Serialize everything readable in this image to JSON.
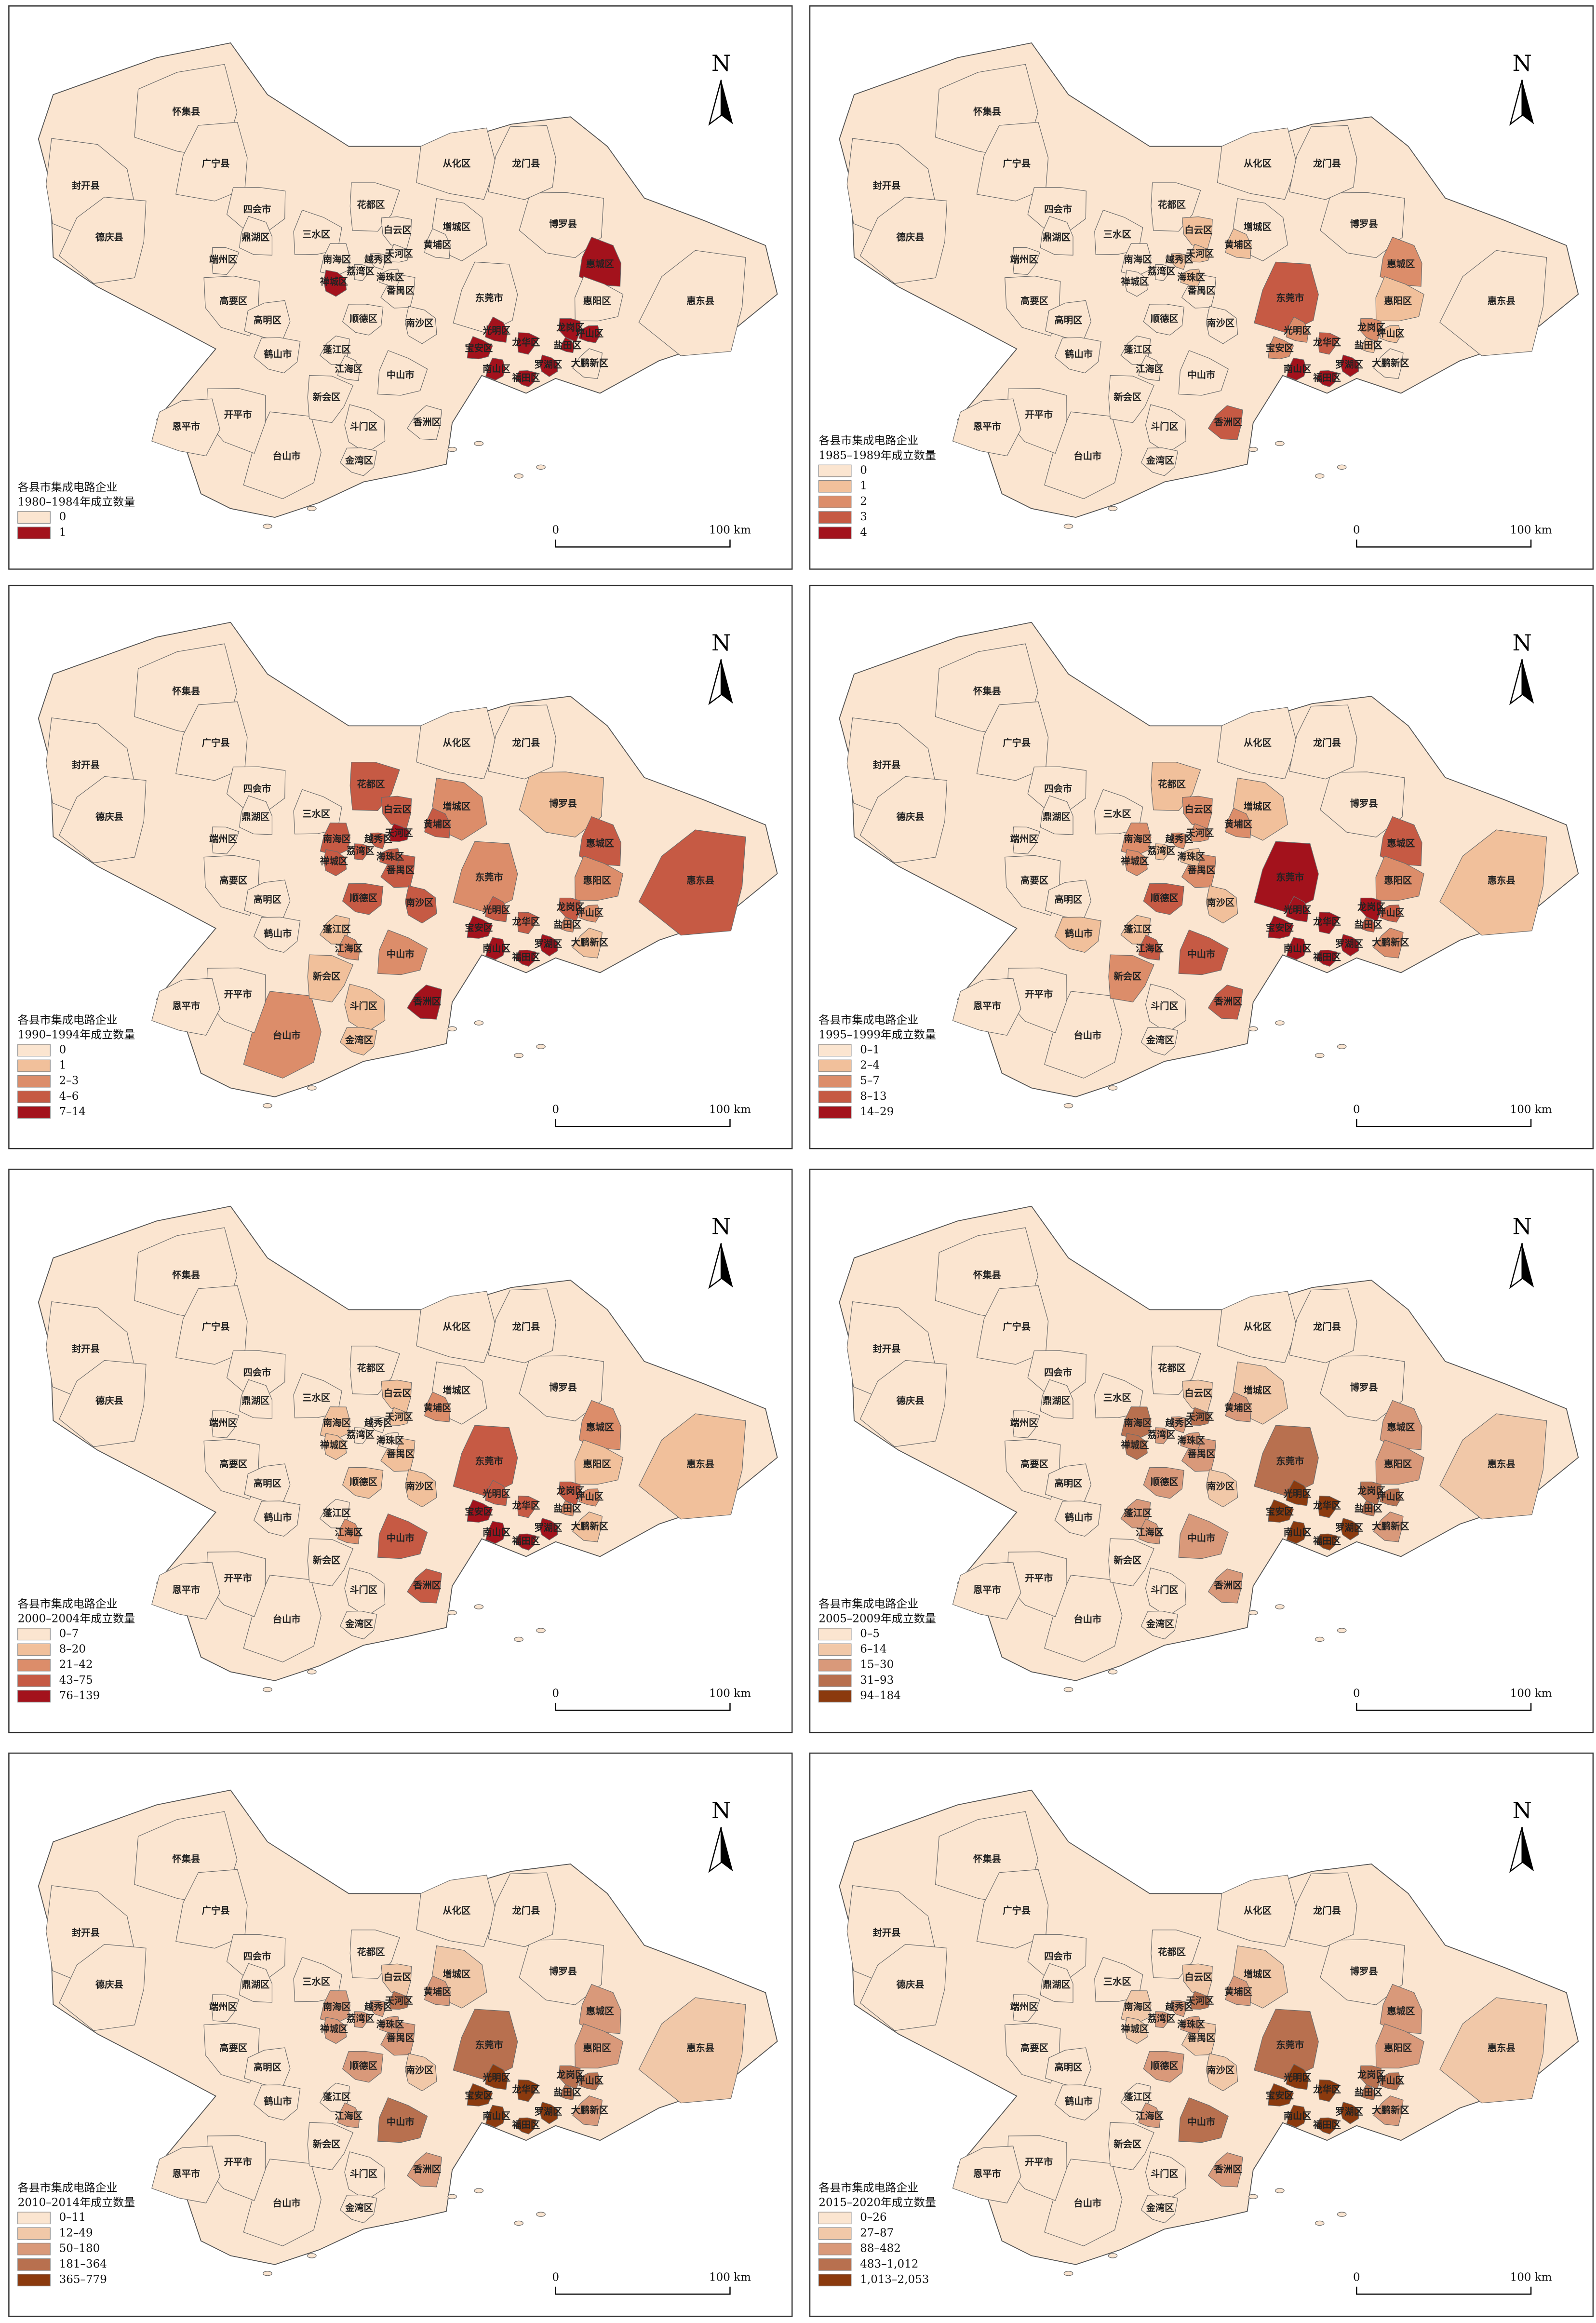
{
  "places": [
    "怀集县",
    "广宁县",
    "封开县",
    "四会市",
    "德庆县",
    "鼎湖区",
    "三水区",
    "花都区",
    "白云区",
    "从化区",
    "龙门县",
    "增城区",
    "博罗县",
    "惠东县",
    "惠城区",
    "惠阳区",
    "端州区",
    "高要区",
    "高明区",
    "南海区",
    "禅城区",
    "顺德区",
    "番禺区",
    "黄埔区",
    "天河区",
    "荔湾区",
    "越秀区",
    "海珠区",
    "东莞市",
    "南沙区",
    "鹤山市",
    "蓬江区",
    "江海区",
    "中山市",
    "新会区",
    "开平市",
    "恩平市",
    "台山市",
    "斗门区",
    "金湾区",
    "香洲区",
    "光明区",
    "宝安区",
    "龙华区",
    "龙岗区",
    "坪山区",
    "南山区",
    "罗湖区",
    "福田区",
    "大鹏新区",
    "盐田区"
  ],
  "north": "N",
  "scale_labels": [
    "0",
    "100 km"
  ],
  "maps": [
    {
      "legend_title": [
        "各县市集成电路企业",
        "1980–1984年成立数量"
      ],
      "legend_labels": [
        "0",
        "1"
      ],
      "colors": [
        "#fbe5d0",
        "#a3121c"
      ],
      "classes": [
        0,
        0,
        0,
        0,
        0,
        0,
        0,
        0,
        0,
        0,
        0,
        0,
        0,
        0,
        1,
        0,
        0,
        0,
        0,
        0,
        1,
        0,
        0,
        0,
        0,
        0,
        0,
        0,
        0,
        0,
        0,
        0,
        0,
        0,
        0,
        0,
        0,
        0,
        0,
        0,
        0,
        1,
        1,
        1,
        1,
        1,
        1,
        1,
        1,
        0,
        1
      ]
    },
    {
      "legend_title": [
        "各县市集成电路企业",
        "1985–1989年成立数量"
      ],
      "legend_labels": [
        "0",
        "1",
        "2",
        "3",
        "4"
      ],
      "colors": [
        "#fbe5d0",
        "#f1c09b",
        "#dc8d6a",
        "#c65a44",
        "#a3121c"
      ],
      "classes": [
        0,
        0,
        0,
        0,
        0,
        0,
        0,
        0,
        1,
        0,
        0,
        0,
        0,
        0,
        2,
        1,
        0,
        0,
        0,
        0,
        0,
        0,
        0,
        1,
        1,
        0,
        1,
        1,
        3,
        0,
        0,
        0,
        0,
        0,
        0,
        0,
        0,
        0,
        0,
        0,
        3,
        2,
        2,
        3,
        2,
        1,
        4,
        4,
        4,
        0,
        1
      ]
    },
    {
      "legend_title": [
        "各县市集成电路企业",
        "1990–1994年成立数量"
      ],
      "legend_labels": [
        "0",
        "1",
        "2–3",
        "4–6",
        "7–14"
      ],
      "colors": [
        "#fbe5d0",
        "#f1c09b",
        "#dc8d6a",
        "#c65a44",
        "#a3121c"
      ],
      "classes": [
        0,
        0,
        0,
        0,
        0,
        0,
        0,
        3,
        3,
        0,
        0,
        2,
        1,
        3,
        3,
        2,
        0,
        0,
        0,
        3,
        3,
        3,
        3,
        3,
        4,
        3,
        3,
        3,
        2,
        3,
        0,
        1,
        2,
        2,
        1,
        0,
        0,
        2,
        1,
        1,
        4,
        3,
        4,
        3,
        3,
        2,
        4,
        4,
        4,
        1,
        2
      ]
    },
    {
      "legend_title": [
        "各县市集成电路企业",
        "1995–1999年成立数量"
      ],
      "legend_labels": [
        "0–1",
        "2–4",
        "5–7",
        "8–13",
        "14–29"
      ],
      "colors": [
        "#fbe5d0",
        "#f1c09b",
        "#dc8d6a",
        "#c65a44",
        "#a3121c"
      ],
      "classes": [
        0,
        0,
        0,
        0,
        0,
        0,
        0,
        1,
        2,
        0,
        0,
        1,
        0,
        1,
        3,
        2,
        0,
        0,
        0,
        2,
        2,
        3,
        2,
        2,
        2,
        1,
        2,
        1,
        4,
        1,
        1,
        1,
        3,
        3,
        2,
        0,
        0,
        0,
        0,
        0,
        3,
        4,
        4,
        4,
        4,
        3,
        4,
        4,
        4,
        2,
        3
      ]
    },
    {
      "legend_title": [
        "各县市集成电路企业",
        "2000–2004年成立数量"
      ],
      "legend_labels": [
        "0–7",
        "8–20",
        "21–42",
        "43–75",
        "76–139"
      ],
      "colors": [
        "#fbe5d0",
        "#f1c09b",
        "#dc8d6a",
        "#c65a44",
        "#a3121c"
      ],
      "classes": [
        0,
        0,
        0,
        0,
        0,
        0,
        0,
        0,
        1,
        0,
        0,
        0,
        0,
        1,
        2,
        1,
        0,
        0,
        0,
        1,
        1,
        1,
        1,
        2,
        1,
        0,
        0,
        0,
        3,
        1,
        0,
        0,
        2,
        3,
        0,
        0,
        0,
        0,
        0,
        0,
        3,
        3,
        4,
        3,
        3,
        2,
        4,
        4,
        4,
        1,
        2
      ]
    },
    {
      "legend_title": [
        "各县市集成电路企业",
        "2005–2009年成立数量"
      ],
      "legend_labels": [
        "0–5",
        "6–14",
        "15–30",
        "31–93",
        "94–184"
      ],
      "colors": [
        "#fbe5d0",
        "#f1c8a8",
        "#d9997a",
        "#b8704f",
        "#8b3a0e"
      ],
      "classes": [
        0,
        0,
        0,
        0,
        0,
        0,
        0,
        0,
        1,
        0,
        0,
        1,
        0,
        1,
        2,
        2,
        0,
        0,
        0,
        3,
        3,
        2,
        2,
        2,
        3,
        2,
        2,
        2,
        3,
        1,
        0,
        2,
        2,
        2,
        0,
        0,
        0,
        0,
        0,
        0,
        2,
        4,
        4,
        4,
        3,
        3,
        4,
        4,
        4,
        2,
        3
      ]
    },
    {
      "legend_title": [
        "各县市集成电路企业",
        "2010–2014年成立数量"
      ],
      "legend_labels": [
        "0–11",
        "12–49",
        "50–180",
        "181–364",
        "365–779"
      ],
      "colors": [
        "#fbe5d0",
        "#f1c8a8",
        "#d9997a",
        "#b8704f",
        "#8b3a0e"
      ],
      "classes": [
        0,
        0,
        0,
        0,
        0,
        0,
        0,
        0,
        1,
        0,
        0,
        1,
        0,
        1,
        2,
        2,
        0,
        0,
        0,
        2,
        2,
        2,
        2,
        2,
        3,
        2,
        2,
        2,
        3,
        1,
        0,
        0,
        2,
        3,
        0,
        0,
        0,
        0,
        0,
        0,
        2,
        4,
        4,
        4,
        3,
        3,
        4,
        4,
        4,
        2,
        3
      ]
    },
    {
      "legend_title": [
        "各县市集成电路企业",
        "2015–2020年成立数量"
      ],
      "legend_labels": [
        "0–26",
        "27–87",
        "88–482",
        "483–1,012",
        "1,013–2,053"
      ],
      "colors": [
        "#fbe5d0",
        "#f1c8a8",
        "#d9997a",
        "#b8704f",
        "#8b3a0e"
      ],
      "classes": [
        0,
        0,
        0,
        0,
        0,
        0,
        0,
        0,
        1,
        0,
        0,
        1,
        0,
        1,
        2,
        2,
        0,
        0,
        0,
        1,
        1,
        2,
        1,
        2,
        3,
        2,
        2,
        2,
        3,
        1,
        0,
        0,
        2,
        3,
        0,
        0,
        0,
        0,
        0,
        0,
        2,
        4,
        4,
        4,
        3,
        3,
        4,
        4,
        4,
        2,
        3
      ]
    }
  ]
}
